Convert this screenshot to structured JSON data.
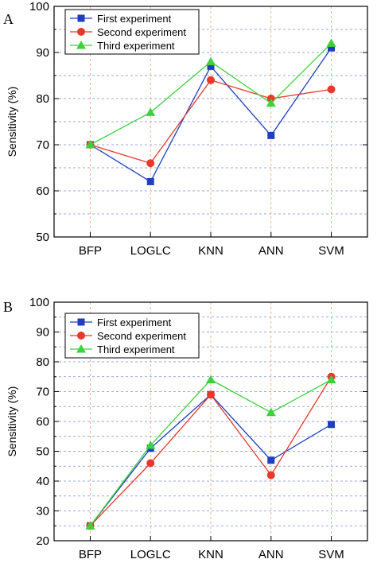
{
  "chart_data": [
    {
      "panel": "A",
      "type": "line",
      "title": "",
      "xlabel": "",
      "ylabel": "Sensitivity (%)",
      "categories": [
        "BFP",
        "LOGLC",
        "KNN",
        "ANN",
        "SVM"
      ],
      "ylim": [
        50,
        100
      ],
      "yticks": [
        50,
        60,
        70,
        80,
        90,
        100
      ],
      "grid": true,
      "legend_position": "top-left",
      "series": [
        {
          "name": "First experiment",
          "color": "#1f3fbf",
          "marker": "square",
          "values": [
            70,
            62,
            87,
            72,
            91
          ]
        },
        {
          "name": "Second experiment",
          "color": "#e8382a",
          "marker": "circle",
          "values": [
            70,
            66,
            84,
            80,
            82
          ]
        },
        {
          "name": "Third experiment",
          "color": "#3cd23c",
          "marker": "triangle",
          "values": [
            70,
            77,
            88,
            79,
            92
          ]
        }
      ]
    },
    {
      "panel": "B",
      "type": "line",
      "title": "",
      "xlabel": "",
      "ylabel": "Sensitivity (%)",
      "categories": [
        "BFP",
        "LOGLC",
        "KNN",
        "ANN",
        "SVM"
      ],
      "ylim": [
        20,
        100
      ],
      "yticks": [
        20,
        30,
        40,
        50,
        60,
        70,
        80,
        90,
        100
      ],
      "grid": true,
      "legend_position": "top-left",
      "series": [
        {
          "name": "First experiment",
          "color": "#1f3fbf",
          "marker": "square",
          "values": [
            25,
            51,
            69,
            47,
            59
          ]
        },
        {
          "name": "Second experiment",
          "color": "#e8382a",
          "marker": "circle",
          "values": [
            25,
            46,
            69,
            42,
            75
          ]
        },
        {
          "name": "Third experiment",
          "color": "#3cd23c",
          "marker": "triangle",
          "values": [
            25,
            52,
            74,
            63,
            74
          ]
        }
      ]
    }
  ]
}
